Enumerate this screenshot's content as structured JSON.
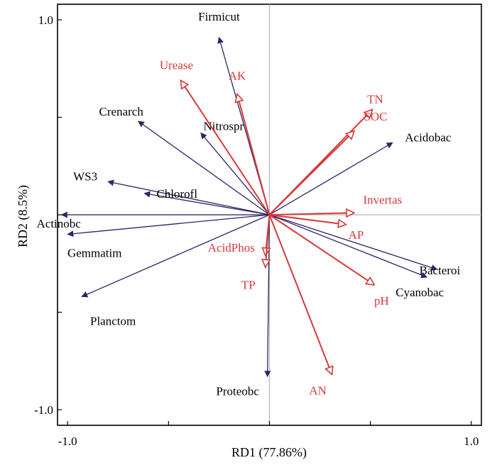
{
  "chart_data": {
    "type": "biplot",
    "xlabel": "RD1 (77.86%)",
    "ylabel": "RD2 (8.5%)",
    "xlim": [
      -1.05,
      1.05
    ],
    "ylim": [
      -1.08,
      1.08
    ],
    "x_ticks": [
      -1.0,
      1.0
    ],
    "x_tick_labels": [
      "-1.0",
      "1.0"
    ],
    "y_ticks": [
      -1.0,
      1.0
    ],
    "y_tick_labels": [
      "-1.0",
      "1.0"
    ],
    "zero_lines": true,
    "grid": false,
    "colors": {
      "species_arrow": "#2e2466",
      "species_label": "#000000",
      "env_arrow": "#d63a3a",
      "env_label": "#d63a3a",
      "zero_line": "#b5b5b5",
      "axes": "#000000"
    },
    "species": [
      {
        "name": "Firmicut",
        "x": -0.25,
        "y": 0.91
      },
      {
        "name": "Crenarch",
        "x": -0.65,
        "y": 0.48
      },
      {
        "name": "Nitrospr",
        "x": -0.34,
        "y": 0.42
      },
      {
        "name": "Acidobac",
        "x": 0.61,
        "y": 0.37
      },
      {
        "name": "WS3",
        "x": -0.8,
        "y": 0.17
      },
      {
        "name": "Chlorofl",
        "x": -0.62,
        "y": 0.11
      },
      {
        "name": "Actinobc",
        "x": -1.03,
        "y": 0.0
      },
      {
        "name": "Gemmatim",
        "x": -1.0,
        "y": -0.1
      },
      {
        "name": "Planctom",
        "x": -0.93,
        "y": -0.42
      },
      {
        "name": "Bacteroi",
        "x": 0.83,
        "y": -0.28
      },
      {
        "name": "Cyanobac",
        "x": 0.78,
        "y": -0.32
      },
      {
        "name": "Proteobc",
        "x": -0.01,
        "y": -0.83
      }
    ],
    "environmental": [
      {
        "name": "Urease",
        "x": -0.44,
        "y": 0.69
      },
      {
        "name": "AK",
        "x": -0.16,
        "y": 0.62
      },
      {
        "name": "TN",
        "x": 0.51,
        "y": 0.54
      },
      {
        "name": "SOC",
        "x": 0.42,
        "y": 0.43
      },
      {
        "name": "Invertas",
        "x": 0.42,
        "y": 0.01
      },
      {
        "name": "AP",
        "x": 0.38,
        "y": -0.05
      },
      {
        "name": "AcidPhos",
        "x": -0.02,
        "y": -0.21
      },
      {
        "name": "TP",
        "x": -0.02,
        "y": -0.27
      },
      {
        "name": "pH",
        "x": 0.52,
        "y": -0.36
      },
      {
        "name": "AN",
        "x": 0.31,
        "y": -0.82
      }
    ]
  }
}
